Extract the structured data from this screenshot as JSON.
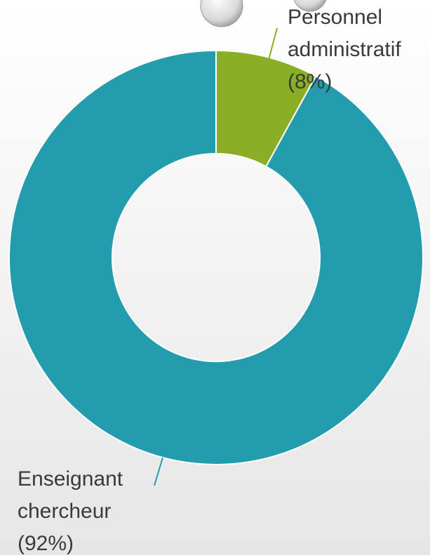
{
  "chart_data": {
    "type": "donut",
    "categories": [
      "Personnel administratif",
      "Enseignant chercheur"
    ],
    "values": [
      8,
      92
    ],
    "value_labels": [
      "(8%)",
      "(92%)"
    ],
    "colors": [
      "#8aae24",
      "#239cae"
    ]
  }
}
